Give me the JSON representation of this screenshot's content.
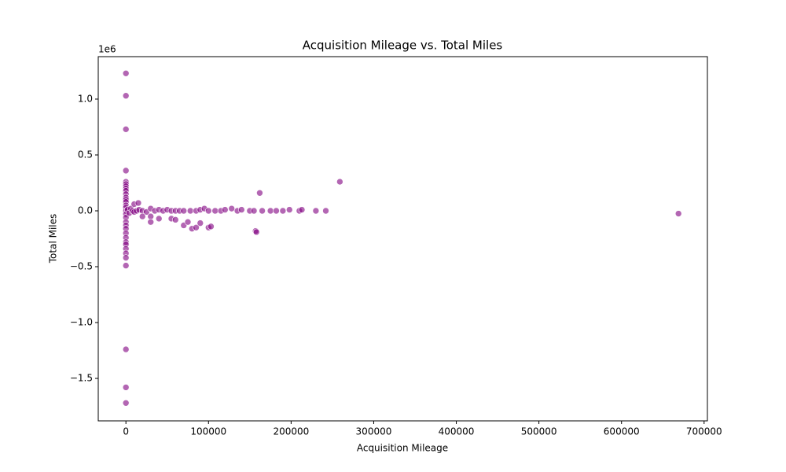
{
  "chart_data": {
    "type": "scatter",
    "title": "Acquisition Mileage vs. Total Miles",
    "x_label": "Acquisition Mileage",
    "y_label": "Total Miles",
    "y_offset_label": "1e6",
    "color": "#800080",
    "xlim": [
      -33500,
      704000
    ],
    "ylim": [
      -1880000,
      1380000
    ],
    "xticks": [
      0,
      100000,
      200000,
      300000,
      400000,
      500000,
      600000,
      700000
    ],
    "yticks": [
      {
        "value": -1500000,
        "label": "−1.5"
      },
      {
        "value": -1000000,
        "label": "−1.0"
      },
      {
        "value": -500000,
        "label": "−0.5"
      },
      {
        "value": 0,
        "label": "0.0"
      },
      {
        "value": 500000,
        "label": "0.5"
      },
      {
        "value": 1000000,
        "label": "1.0"
      }
    ],
    "x": [
      0,
      0,
      0,
      0,
      0,
      0,
      0,
      0,
      0,
      0,
      0,
      0,
      0,
      0,
      0,
      0,
      0,
      0,
      0,
      0,
      0,
      0,
      0,
      0,
      0,
      0,
      0,
      0,
      0,
      0,
      0,
      0,
      2000,
      4000,
      6000,
      8000,
      10000,
      13000,
      16000,
      20000,
      25000,
      30000,
      35000,
      40000,
      45000,
      50000,
      55000,
      60000,
      65000,
      70000,
      78000,
      85000,
      90000,
      95000,
      100000,
      108000,
      115000,
      120000,
      128000,
      135000,
      140000,
      150000,
      155000,
      165000,
      175000,
      182000,
      190000,
      198000,
      210000,
      213000,
      230000,
      242000,
      30000,
      30000,
      40000,
      55000,
      60000,
      70000,
      75000,
      80000,
      85000,
      90000,
      100000,
      103000,
      157000,
      158000,
      162000,
      259000,
      669000,
      20000,
      10000,
      15000
    ],
    "values": [
      1230000,
      1030000,
      730000,
      360000,
      260000,
      240000,
      220000,
      200000,
      180000,
      150000,
      120000,
      100000,
      80000,
      50000,
      30000,
      0,
      -30000,
      -60000,
      -100000,
      -130000,
      -160000,
      -200000,
      -240000,
      -280000,
      -300000,
      -340000,
      -380000,
      -420000,
      -490000,
      -1240000,
      -1580000,
      -1720000,
      10000,
      -20000,
      20000,
      0,
      -10000,
      0,
      10000,
      0,
      -10000,
      20000,
      0,
      10000,
      0,
      10000,
      0,
      0,
      0,
      0,
      0,
      0,
      10000,
      20000,
      0,
      0,
      0,
      10000,
      20000,
      0,
      10000,
      0,
      0,
      0,
      0,
      0,
      0,
      10000,
      0,
      10000,
      0,
      0,
      -50000,
      -100000,
      -70000,
      -70000,
      -80000,
      -130000,
      -100000,
      -160000,
      -150000,
      -110000,
      -150000,
      -140000,
      -180000,
      -190000,
      160000,
      260000,
      -25000,
      -50000,
      60000,
      70000
    ]
  }
}
